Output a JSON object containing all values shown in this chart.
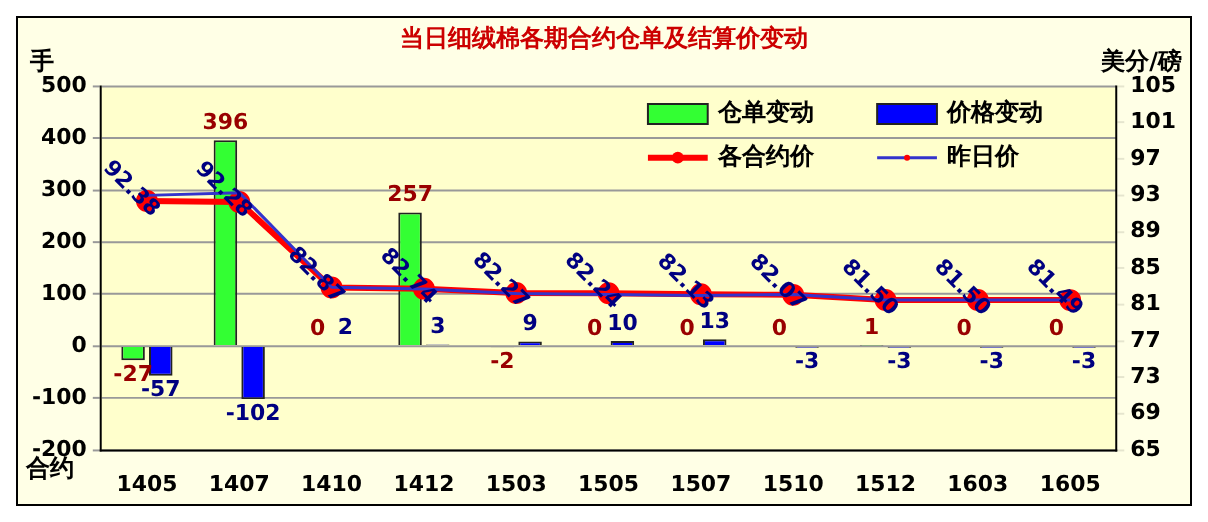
{
  "chart_data": {
    "type": "bar",
    "title": "当日细绒棉各期合约仓单及结算价变动",
    "xlabel": "合约",
    "ylabel": "手",
    "y2label": "美分/磅",
    "categories": [
      "1405",
      "1407",
      "1410",
      "1412",
      "1503",
      "1505",
      "1507",
      "1510",
      "1512",
      "1603",
      "1605"
    ],
    "series": [
      {
        "name": "仓单变动",
        "color": "#33ff33",
        "values": [
          -27,
          396,
          0,
          257,
          -2,
          0,
          0,
          0,
          1,
          0,
          0
        ],
        "value_labels": [
          "-27",
          "396",
          "0",
          "257",
          "-2",
          "0",
          "0",
          "0",
          "1",
          "0",
          "0"
        ]
      },
      {
        "name": "价格变动",
        "color": "#0000ff",
        "values": [
          -57,
          -102,
          2,
          3,
          9,
          10,
          13,
          -3,
          -3,
          -3,
          -3
        ],
        "value_labels": [
          "-57",
          "-102",
          "2",
          "3",
          "9",
          "10",
          "13",
          "-3",
          "-3",
          "-3",
          "-3"
        ]
      },
      {
        "name": "各合约价",
        "type": "line",
        "axis": "y2",
        "color": "#ff0000",
        "marker": "circle",
        "values": [
          92.38,
          92.28,
          82.87,
          82.74,
          82.27,
          82.24,
          82.13,
          82.07,
          81.5,
          81.5,
          81.49
        ],
        "value_labels": [
          "92.38",
          "92.28",
          "82.87",
          "82.74",
          "82.27",
          "82.24",
          "82.13",
          "82.07",
          "81.50",
          "81.50",
          "81.49"
        ]
      },
      {
        "name": "昨日价",
        "type": "line",
        "axis": "y2",
        "color": "#3333cc",
        "marker": "none",
        "values": [
          93.0,
          93.3,
          82.9,
          82.7,
          82.2,
          82.1,
          82.0,
          82.1,
          81.5,
          81.5,
          81.5
        ]
      }
    ],
    "ylim": [
      -200,
      500
    ],
    "yticks": [
      -200,
      -100,
      0,
      100,
      200,
      300,
      400,
      500
    ],
    "y2lim": [
      65,
      105
    ],
    "y2ticks": [
      65,
      69,
      73,
      77,
      81,
      85,
      89,
      93,
      97,
      101,
      105
    ],
    "grid": "y",
    "legend": "top right"
  }
}
